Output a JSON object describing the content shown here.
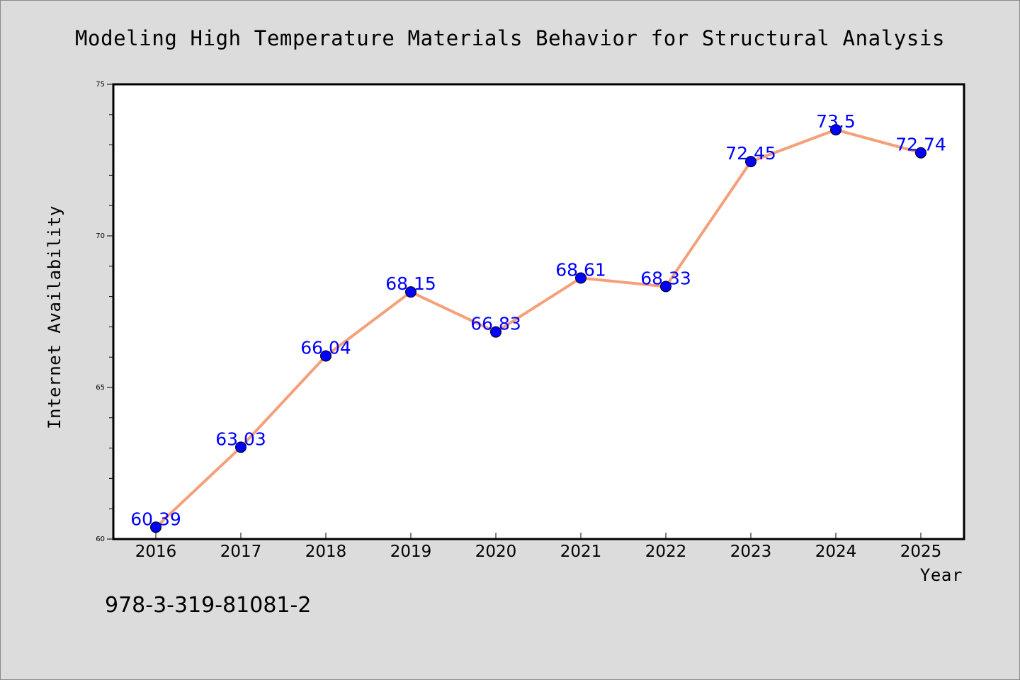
{
  "chart_data": {
    "type": "line",
    "title": "Modeling High Temperature Materials Behavior for Structural Analysis",
    "xlabel": "Year",
    "ylabel": "Internet Availability",
    "categories": [
      "2016",
      "2017",
      "2018",
      "2019",
      "2020",
      "2021",
      "2022",
      "2023",
      "2024",
      "2025"
    ],
    "series": [
      {
        "values": [
          60.39,
          63.03,
          66.04,
          68.15,
          66.83,
          68.61,
          68.33,
          72.45,
          73.5,
          72.74
        ],
        "data_labels": [
          "60.39",
          "63.03",
          "66.04",
          "68.15",
          "66.83",
          "68.61",
          "68.33",
          "72.45",
          "73.5",
          "72.74"
        ],
        "line_color": "#f5a07a",
        "marker_color": "#0000ff"
      }
    ],
    "ylim": [
      60,
      75
    ],
    "yticks": [
      60,
      65,
      70,
      75
    ],
    "ytick_labels": [
      "60",
      "65",
      "70",
      "75"
    ],
    "y_minor_step": 1,
    "grid": false,
    "legend": false
  },
  "footnote": "978-3-319-81081-2",
  "colors": {
    "background": "#dcdcdc",
    "plot_background": "#ffffff",
    "line": "#f5a07a",
    "marker": "#0000ff",
    "data_label": "#0000ff"
  }
}
